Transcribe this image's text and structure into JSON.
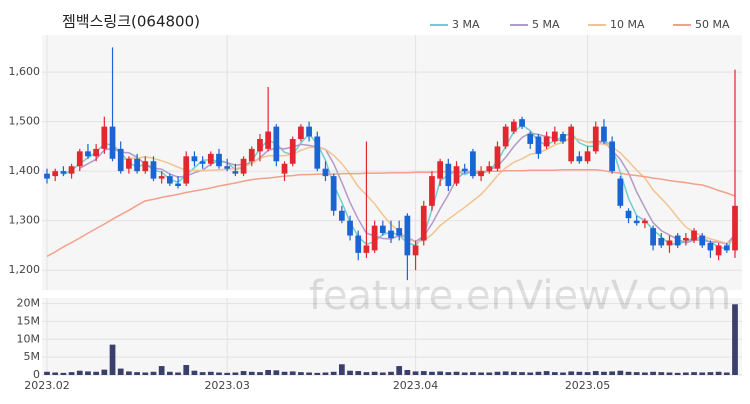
{
  "chart_data": {
    "type": "candlestick",
    "title": "젬백스링크(064800)",
    "watermark": "feature.enViewV.com",
    "up_color": "#e3262f",
    "down_color": "#1b64d4",
    "volume_color": "#3a3f6b",
    "grid": true,
    "legend": "top-right",
    "categories": [
      "2023.02",
      null,
      null,
      null,
      null,
      null,
      null,
      null,
      null,
      null,
      null,
      null,
      null,
      null,
      null,
      null,
      null,
      null,
      null,
      null,
      null,
      null,
      "2023.03",
      null,
      null,
      null,
      null,
      null,
      null,
      null,
      null,
      null,
      null,
      null,
      null,
      null,
      null,
      null,
      null,
      null,
      null,
      null,
      null,
      null,
      null,
      "2023.04",
      null,
      null,
      null,
      null,
      null,
      null,
      null,
      null,
      null,
      null,
      null,
      null,
      null,
      null,
      null,
      null,
      null,
      null,
      null,
      null,
      "2023.05",
      null,
      null,
      null,
      null,
      null,
      null,
      null,
      null,
      null,
      null,
      null,
      null,
      null,
      null,
      null,
      null,
      null,
      null
    ],
    "open": [
      1395,
      1390,
      1400,
      1395,
      1410,
      1440,
      1430,
      1445,
      1490,
      1445,
      1405,
      1425,
      1400,
      1420,
      1385,
      1390,
      1375,
      1375,
      1430,
      1420,
      1415,
      1435,
      1410,
      1400,
      1395,
      1420,
      1440,
      1445,
      1490,
      1395,
      1415,
      1465,
      1490,
      1470,
      1405,
      1390,
      1320,
      1300,
      1270,
      1235,
      1240,
      1290,
      1280,
      1285,
      1310,
      1230,
      1260,
      1330,
      1385,
      1415,
      1375,
      1405,
      1440,
      1390,
      1400,
      1405,
      1450,
      1480,
      1505,
      1475,
      1470,
      1450,
      1460,
      1475,
      1420,
      1430,
      1420,
      1440,
      1490,
      1460,
      1385,
      1320,
      1300,
      1295,
      1285,
      1265,
      1250,
      1270,
      1260,
      1260,
      1270,
      1255,
      1230,
      1250,
      1240
    ],
    "high": [
      1405,
      1405,
      1410,
      1415,
      1445,
      1455,
      1455,
      1510,
      1650,
      1460,
      1430,
      1435,
      1430,
      1430,
      1400,
      1395,
      1390,
      1440,
      1440,
      1430,
      1440,
      1445,
      1425,
      1415,
      1430,
      1450,
      1475,
      1570,
      1495,
      1420,
      1470,
      1495,
      1500,
      1480,
      1420,
      1395,
      1330,
      1310,
      1280,
      1460,
      1300,
      1300,
      1300,
      1300,
      1315,
      1260,
      1340,
      1400,
      1425,
      1425,
      1420,
      1415,
      1445,
      1410,
      1420,
      1460,
      1495,
      1505,
      1510,
      1480,
      1475,
      1480,
      1490,
      1480,
      1495,
      1440,
      1450,
      1500,
      1505,
      1470,
      1390,
      1325,
      1310,
      1305,
      1290,
      1275,
      1270,
      1275,
      1275,
      1285,
      1275,
      1260,
      1255,
      1255,
      1605
    ],
    "low": [
      1375,
      1380,
      1390,
      1385,
      1400,
      1425,
      1420,
      1435,
      1420,
      1395,
      1395,
      1395,
      1395,
      1380,
      1375,
      1370,
      1365,
      1370,
      1410,
      1405,
      1410,
      1405,
      1400,
      1390,
      1390,
      1410,
      1420,
      1440,
      1410,
      1380,
      1410,
      1460,
      1460,
      1400,
      1380,
      1310,
      1295,
      1260,
      1220,
      1225,
      1235,
      1270,
      1255,
      1260,
      1180,
      1200,
      1250,
      1320,
      1370,
      1360,
      1370,
      1395,
      1385,
      1380,
      1395,
      1400,
      1445,
      1475,
      1485,
      1445,
      1425,
      1445,
      1455,
      1455,
      1415,
      1415,
      1415,
      1435,
      1455,
      1395,
      1325,
      1295,
      1290,
      1285,
      1240,
      1245,
      1235,
      1245,
      1250,
      1255,
      1245,
      1225,
      1220,
      1235,
      1225
    ],
    "close": [
      1385,
      1400,
      1395,
      1410,
      1440,
      1430,
      1445,
      1490,
      1425,
      1400,
      1425,
      1400,
      1420,
      1385,
      1390,
      1375,
      1370,
      1430,
      1420,
      1415,
      1435,
      1410,
      1405,
      1395,
      1425,
      1445,
      1465,
      1480,
      1420,
      1415,
      1465,
      1490,
      1470,
      1405,
      1390,
      1320,
      1300,
      1270,
      1235,
      1250,
      1290,
      1275,
      1265,
      1270,
      1230,
      1250,
      1330,
      1390,
      1420,
      1370,
      1410,
      1400,
      1390,
      1400,
      1410,
      1450,
      1490,
      1500,
      1490,
      1455,
      1435,
      1470,
      1480,
      1460,
      1490,
      1420,
      1440,
      1490,
      1460,
      1400,
      1330,
      1305,
      1295,
      1300,
      1250,
      1250,
      1260,
      1250,
      1265,
      1280,
      1250,
      1240,
      1250,
      1240,
      1330
    ],
    "volume": [
      900000,
      700000,
      600000,
      800000,
      1200000,
      1000000,
      900000,
      1500000,
      8500000,
      1800000,
      1000000,
      800000,
      700000,
      900000,
      2500000,
      900000,
      700000,
      2800000,
      1200000,
      800000,
      900000,
      700000,
      600000,
      700000,
      1100000,
      900000,
      800000,
      1400000,
      1300000,
      900000,
      1000000,
      800000,
      700000,
      600000,
      700000,
      900000,
      3000000,
      1200000,
      1100000,
      800000,
      900000,
      700000,
      900000,
      2500000,
      1400000,
      1000000,
      1100000,
      900000,
      1000000,
      800000,
      900000,
      700000,
      800000,
      700000,
      700000,
      900000,
      1000000,
      900000,
      800000,
      700000,
      900000,
      1100000,
      800000,
      700000,
      1000000,
      900000,
      800000,
      1100000,
      900000,
      1000000,
      1200000,
      900000,
      800000,
      700000,
      900000,
      800000,
      700000,
      600000,
      700000,
      800000,
      700000,
      800000,
      900000,
      700000,
      19800000
    ],
    "ylim": [
      1160,
      1675
    ],
    "yticks": [
      {
        "value": 1200,
        "label": "1,200"
      },
      {
        "value": 1300,
        "label": "1,300"
      },
      {
        "value": 1400,
        "label": "1,400"
      },
      {
        "value": 1500,
        "label": "1,500"
      },
      {
        "value": 1600,
        "label": "1,600"
      }
    ],
    "volume_ylim": [
      0,
      21000000
    ],
    "volume_ticks": [
      {
        "value": 0,
        "label": "0"
      },
      {
        "value": 5000000,
        "label": "5M"
      },
      {
        "value": 10000000,
        "label": "10M"
      },
      {
        "value": 15000000,
        "label": "15M"
      },
      {
        "value": 20000000,
        "label": "20M"
      }
    ],
    "series": [
      {
        "name": "3 MA",
        "color": "#6ccfcf",
        "values": [
          null,
          null,
          1393,
          1402,
          1415,
          1427,
          1438,
          1455,
          1453,
          1438,
          1417,
          1408,
          1415,
          1402,
          1398,
          1383,
          1378,
          1392,
          1407,
          1422,
          1423,
          1420,
          1417,
          1403,
          1408,
          1422,
          1445,
          1463,
          1455,
          1438,
          1433,
          1457,
          1475,
          1455,
          1422,
          1372,
          1337,
          1297,
          1268,
          1252,
          1258,
          1272,
          1277,
          1270,
          1255,
          1250,
          1270,
          1323,
          1380,
          1393,
          1400,
          1393,
          1400,
          1397,
          1400,
          1420,
          1450,
          1480,
          1493,
          1482,
          1460,
          1453,
          1462,
          1470,
          1477,
          1457,
          1450,
          1450,
          1463,
          1450,
          1397,
          1345,
          1310,
          1300,
          1282,
          1267,
          1253,
          1253,
          1258,
          1265,
          1265,
          1257,
          1247,
          1243,
          1273
        ]
      },
      {
        "name": "5 MA",
        "color": "#b29ac9",
        "values": [
          null,
          null,
          null,
          null,
          1406,
          1415,
          1424,
          1443,
          1446,
          1438,
          1437,
          1428,
          1414,
          1406,
          1404,
          1394,
          1388,
          1390,
          1397,
          1402,
          1414,
          1422,
          1417,
          1412,
          1414,
          1416,
          1427,
          1442,
          1447,
          1445,
          1449,
          1454,
          1452,
          1449,
          1444,
          1415,
          1377,
          1337,
          1303,
          1275,
          1269,
          1264,
          1263,
          1270,
          1266,
          1258,
          1269,
          1294,
          1324,
          1352,
          1384,
          1398,
          1398,
          1394,
          1402,
          1410,
          1428,
          1450,
          1468,
          1477,
          1474,
          1470,
          1466,
          1460,
          1467,
          1464,
          1458,
          1460,
          1460,
          1442,
          1424,
          1397,
          1358,
          1326,
          1296,
          1280,
          1271,
          1262,
          1255,
          1261,
          1261,
          1257,
          1257,
          1253,
          1272
        ]
      },
      {
        "name": "10 MA",
        "color": "#f2c38f",
        "values": [
          null,
          null,
          null,
          null,
          null,
          null,
          null,
          null,
          null,
          1422,
          1426,
          1426,
          1429,
          1426,
          1421,
          1415,
          1408,
          1402,
          1402,
          1401,
          1402,
          1403,
          1404,
          1405,
          1409,
          1416,
          1426,
          1431,
          1431,
          1431,
          1434,
          1442,
          1448,
          1448,
          1444,
          1432,
          1415,
          1394,
          1369,
          1352,
          1334,
          1312,
          1292,
          1279,
          1263,
          1257,
          1260,
          1272,
          1290,
          1303,
          1315,
          1327,
          1340,
          1353,
          1371,
          1391,
          1407,
          1418,
          1425,
          1434,
          1437,
          1444,
          1453,
          1459,
          1467,
          1464,
          1458,
          1457,
          1454,
          1449,
          1437,
          1420,
          1402,
          1386,
          1362,
          1345,
          1327,
          1306,
          1287,
          1277,
          1269,
          1263,
          1259,
          1254,
          1262
        ]
      },
      {
        "name": "50 MA",
        "color": "#f3a08b",
        "values": [
          1228,
          1237,
          1247,
          1256,
          1265,
          1275,
          1284,
          1293,
          1303,
          1312,
          1321,
          1331,
          1340,
          1343,
          1347,
          1350,
          1353,
          1357,
          1360,
          1363,
          1366,
          1370,
          1373,
          1376,
          1380,
          1383,
          1385,
          1386,
          1388,
          1390,
          1391,
          1393,
          1393,
          1394,
          1394,
          1394,
          1395,
          1395,
          1395,
          1396,
          1396,
          1396,
          1397,
          1397,
          1397,
          1398,
          1398,
          1398,
          1399,
          1399,
          1399,
          1400,
          1400,
          1400,
          1400,
          1400,
          1401,
          1401,
          1401,
          1402,
          1402,
          1402,
          1402,
          1403,
          1403,
          1403,
          1403,
          1403,
          1401,
          1398,
          1396,
          1393,
          1391,
          1389,
          1386,
          1384,
          1381,
          1379,
          1377,
          1374,
          1372,
          1367,
          1361,
          1356,
          1350
        ]
      }
    ]
  }
}
